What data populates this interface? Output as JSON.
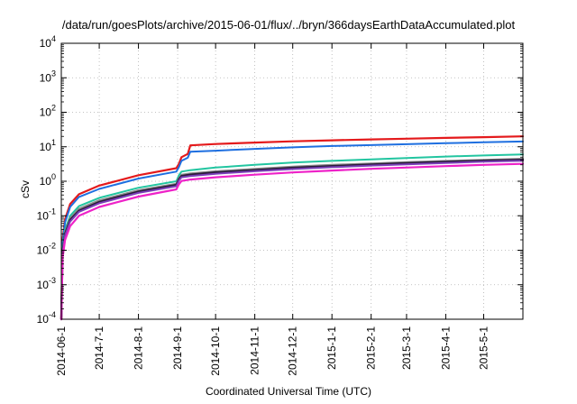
{
  "chart_data": {
    "type": "line",
    "title": "/data/run/goesPlots/archive/2015-06-01/flux/../bryn/366daysEarthDataAccumulated.plot",
    "xlabel": "Coordinated Universal Time (UTC)",
    "ylabel": "cSv",
    "y_scale": "log",
    "ylim": [
      0.0001,
      10000
    ],
    "xlim": [
      "2014-06-01",
      "2015-06-01"
    ],
    "grid": true,
    "x_ticks": [
      "2014-06-1",
      "2014-7-1",
      "2014-8-1",
      "2014-9-1",
      "2014-10-1",
      "2014-11-1",
      "2014-12-1",
      "2015-1-1",
      "2015-2-1",
      "2015-3-1",
      "2015-4-1",
      "2015-5-1"
    ],
    "y_ticks": [
      {
        "value": 0.0001,
        "base": "10",
        "exp": "-4"
      },
      {
        "value": 0.001,
        "base": "10",
        "exp": "-3"
      },
      {
        "value": 0.01,
        "base": "10",
        "exp": "-2"
      },
      {
        "value": 0.1,
        "base": "10",
        "exp": "-1"
      },
      {
        "value": 1,
        "base": "10",
        "exp": "0"
      },
      {
        "value": 10,
        "base": "10",
        "exp": "1"
      },
      {
        "value": 100,
        "base": "10",
        "exp": "2"
      },
      {
        "value": 1000,
        "base": "10",
        "exp": "3"
      },
      {
        "value": 10000,
        "base": "10",
        "exp": "4"
      }
    ],
    "series": [
      {
        "color": "#e41a1c",
        "width": 2.2,
        "points": [
          [
            "2014-06-01",
            0.0001
          ],
          [
            "2014-06-02",
            0.02
          ],
          [
            "2014-06-04",
            0.08
          ],
          [
            "2014-06-08",
            0.22
          ],
          [
            "2014-06-15",
            0.42
          ],
          [
            "2014-07-01",
            0.75
          ],
          [
            "2014-08-01",
            1.5
          ],
          [
            "2014-08-31",
            2.4
          ],
          [
            "2014-09-02",
            3.2
          ],
          [
            "2014-09-04",
            5.0
          ],
          [
            "2014-09-09",
            6.2
          ],
          [
            "2014-09-11",
            11.0
          ],
          [
            "2014-10-01",
            12.0
          ],
          [
            "2014-11-01",
            13.2
          ],
          [
            "2014-12-01",
            14.4
          ],
          [
            "2015-01-01",
            15.4
          ],
          [
            "2015-02-01",
            16.3
          ],
          [
            "2015-03-01",
            17.1
          ],
          [
            "2015-04-01",
            18.1
          ],
          [
            "2015-05-01",
            19.0
          ],
          [
            "2015-06-01",
            20.0
          ]
        ]
      },
      {
        "color": "#1e6fe0",
        "width": 2.0,
        "points": [
          [
            "2014-06-01",
            0.0001
          ],
          [
            "2014-06-02",
            0.016
          ],
          [
            "2014-06-04",
            0.065
          ],
          [
            "2014-06-08",
            0.18
          ],
          [
            "2014-06-15",
            0.35
          ],
          [
            "2014-07-01",
            0.6
          ],
          [
            "2014-08-01",
            1.2
          ],
          [
            "2014-08-31",
            1.9
          ],
          [
            "2014-09-02",
            2.6
          ],
          [
            "2014-09-04",
            3.9
          ],
          [
            "2014-09-09",
            4.8
          ],
          [
            "2014-09-11",
            7.2
          ],
          [
            "2014-10-01",
            7.7
          ],
          [
            "2014-11-01",
            8.7
          ],
          [
            "2014-12-01",
            9.6
          ],
          [
            "2015-01-01",
            10.5
          ],
          [
            "2015-02-01",
            11.2
          ],
          [
            "2015-03-01",
            11.9
          ],
          [
            "2015-04-01",
            12.7
          ],
          [
            "2015-05-01",
            13.5
          ],
          [
            "2015-06-01",
            14.2
          ]
        ]
      },
      {
        "color": "#22c5a0",
        "width": 2.0,
        "points": [
          [
            "2014-06-01",
            0.0001
          ],
          [
            "2014-06-02",
            0.012
          ],
          [
            "2014-06-04",
            0.04
          ],
          [
            "2014-06-08",
            0.1
          ],
          [
            "2014-06-15",
            0.19
          ],
          [
            "2014-07-01",
            0.33
          ],
          [
            "2014-08-01",
            0.65
          ],
          [
            "2014-08-31",
            1.0
          ],
          [
            "2014-09-02",
            1.5
          ],
          [
            "2014-09-04",
            1.9
          ],
          [
            "2014-09-11",
            2.1
          ],
          [
            "2014-10-01",
            2.5
          ],
          [
            "2014-11-01",
            3.0
          ],
          [
            "2014-12-01",
            3.5
          ],
          [
            "2015-01-01",
            3.9
          ],
          [
            "2015-02-01",
            4.3
          ],
          [
            "2015-03-01",
            4.7
          ],
          [
            "2015-04-01",
            5.2
          ],
          [
            "2015-05-01",
            5.6
          ],
          [
            "2015-06-01",
            6.0
          ]
        ]
      },
      {
        "color": "#8b8b8b",
        "width": 2.0,
        "points": [
          [
            "2014-06-01",
            0.0001
          ],
          [
            "2014-06-02",
            0.01
          ],
          [
            "2014-06-04",
            0.034
          ],
          [
            "2014-06-08",
            0.085
          ],
          [
            "2014-06-15",
            0.16
          ],
          [
            "2014-07-01",
            0.28
          ],
          [
            "2014-08-01",
            0.55
          ],
          [
            "2014-08-31",
            0.85
          ],
          [
            "2014-09-02",
            1.25
          ],
          [
            "2014-09-04",
            1.55
          ],
          [
            "2014-09-11",
            1.7
          ],
          [
            "2014-10-01",
            1.95
          ],
          [
            "2014-11-01",
            2.3
          ],
          [
            "2014-12-01",
            2.65
          ],
          [
            "2015-01-01",
            3.0
          ],
          [
            "2015-02-01",
            3.3
          ],
          [
            "2015-03-01",
            3.6
          ],
          [
            "2015-04-01",
            3.9
          ],
          [
            "2015-05-01",
            4.2
          ],
          [
            "2015-06-01",
            4.5
          ]
        ]
      },
      {
        "color": "#2b1a3a",
        "width": 2.4,
        "points": [
          [
            "2014-06-01",
            0.0001
          ],
          [
            "2014-06-02",
            0.009
          ],
          [
            "2014-06-04",
            0.03
          ],
          [
            "2014-06-08",
            0.075
          ],
          [
            "2014-06-15",
            0.14
          ],
          [
            "2014-07-01",
            0.25
          ],
          [
            "2014-08-01",
            0.5
          ],
          [
            "2014-08-31",
            0.78
          ],
          [
            "2014-09-02",
            1.15
          ],
          [
            "2014-09-04",
            1.42
          ],
          [
            "2014-09-11",
            1.55
          ],
          [
            "2014-10-01",
            1.8
          ],
          [
            "2014-11-01",
            2.1
          ],
          [
            "2014-12-01",
            2.45
          ],
          [
            "2015-01-01",
            2.75
          ],
          [
            "2015-02-01",
            3.05
          ],
          [
            "2015-03-01",
            3.35
          ],
          [
            "2015-04-01",
            3.65
          ],
          [
            "2015-05-01",
            3.95
          ],
          [
            "2015-06-01",
            4.2
          ]
        ]
      },
      {
        "color": "#7a3fb8",
        "width": 2.0,
        "points": [
          [
            "2014-06-01",
            0.0001
          ],
          [
            "2014-06-02",
            0.008
          ],
          [
            "2014-06-04",
            0.027
          ],
          [
            "2014-06-08",
            0.068
          ],
          [
            "2014-06-15",
            0.13
          ],
          [
            "2014-07-01",
            0.23
          ],
          [
            "2014-08-01",
            0.46
          ],
          [
            "2014-08-31",
            0.72
          ],
          [
            "2014-09-02",
            1.05
          ],
          [
            "2014-09-04",
            1.3
          ],
          [
            "2014-09-11",
            1.42
          ],
          [
            "2014-10-01",
            1.65
          ],
          [
            "2014-11-01",
            1.95
          ],
          [
            "2014-12-01",
            2.25
          ],
          [
            "2015-01-01",
            2.55
          ],
          [
            "2015-02-01",
            2.85
          ],
          [
            "2015-03-01",
            3.1
          ],
          [
            "2015-04-01",
            3.4
          ],
          [
            "2015-05-01",
            3.7
          ],
          [
            "2015-06-01",
            3.95
          ]
        ]
      },
      {
        "color": "#ee22c8",
        "width": 2.2,
        "points": [
          [
            "2014-06-01",
            0.0001
          ],
          [
            "2014-06-02",
            0.006
          ],
          [
            "2014-06-04",
            0.02
          ],
          [
            "2014-06-08",
            0.05
          ],
          [
            "2014-06-15",
            0.1
          ],
          [
            "2014-07-01",
            0.18
          ],
          [
            "2014-08-01",
            0.36
          ],
          [
            "2014-08-31",
            0.58
          ],
          [
            "2014-09-02",
            0.82
          ],
          [
            "2014-09-04",
            1.02
          ],
          [
            "2014-09-11",
            1.12
          ],
          [
            "2014-10-01",
            1.3
          ],
          [
            "2014-11-01",
            1.55
          ],
          [
            "2014-12-01",
            1.8
          ],
          [
            "2015-01-01",
            2.05
          ],
          [
            "2015-02-01",
            2.3
          ],
          [
            "2015-03-01",
            2.5
          ],
          [
            "2015-04-01",
            2.75
          ],
          [
            "2015-05-01",
            3.0
          ],
          [
            "2015-06-01",
            3.2
          ]
        ]
      }
    ]
  }
}
